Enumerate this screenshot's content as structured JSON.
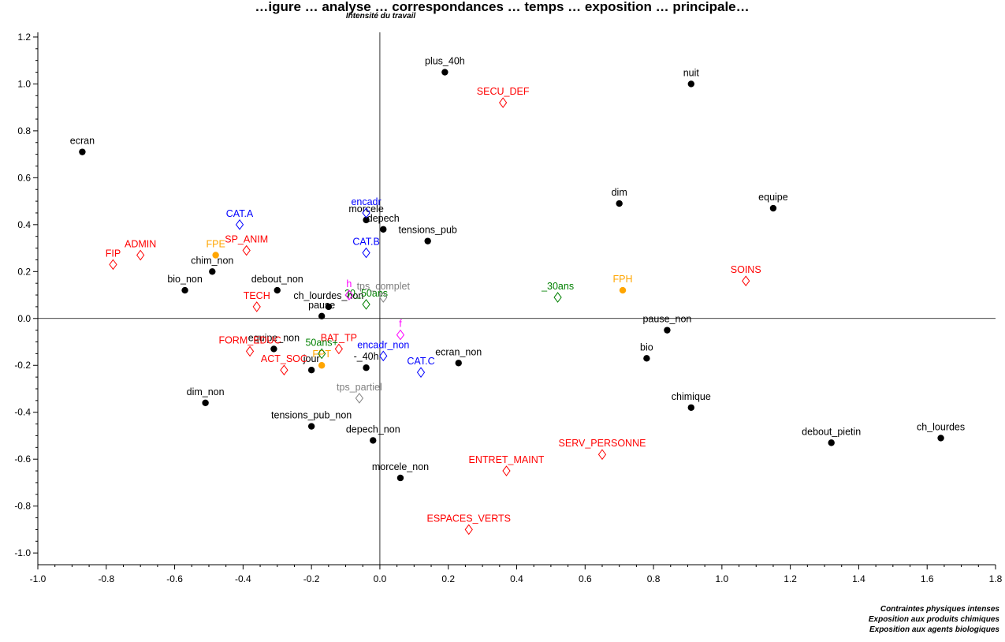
{
  "chart_data": {
    "type": "scatter",
    "title": "…igure … analyse … correspondances … temps … exposition … principale…",
    "ylabel": "Intensité du travail",
    "xlabel_lines": [
      "Contraintes physiques intenses",
      "Exposition aux produits chimiques",
      "Exposition aux agents biologiques"
    ],
    "xlim": [
      -1.0,
      1.8
    ],
    "ylim": [
      -1.05,
      1.22
    ],
    "x_ticks": [
      -1.0,
      -0.8,
      -0.6,
      -0.4,
      -0.2,
      0.0,
      0.2,
      0.4,
      0.6,
      0.8,
      1.0,
      1.2,
      1.4,
      1.6,
      1.8
    ],
    "x_tick_labels": [
      "-1.0",
      "-0.8",
      "-0.6",
      "-0.4",
      "-0.2",
      "0.0",
      "0.2",
      "0.4",
      "0.6",
      "0.8",
      "1.0",
      "1.2",
      "1.4",
      "1.6",
      "1.8"
    ],
    "y_ticks": [
      -1.0,
      -0.8,
      -0.6,
      -0.4,
      -0.2,
      0.0,
      0.2,
      0.4,
      0.6,
      0.8,
      1.0,
      1.2
    ],
    "y_tick_labels": [
      "-1.0",
      "-0.8",
      "-0.6",
      "-0.4",
      "-0.2",
      "0.0",
      "0.2",
      "0.4",
      "0.6",
      "0.8",
      "1.0",
      "1.2"
    ],
    "reference_lines": {
      "x": 0.0,
      "y": 0.0
    },
    "grid": false,
    "colors": {
      "black": "#000000",
      "red": "#ff0000",
      "blue": "#0000ff",
      "orange": "#ffa500",
      "green": "#008000",
      "magenta": "#ff00ff",
      "gray": "#808080"
    },
    "points": [
      {
        "label": "plus_40h",
        "x": 0.19,
        "y": 1.05,
        "marker": "dot",
        "color": "#000000"
      },
      {
        "label": "nuit",
        "x": 0.91,
        "y": 1.0,
        "marker": "dot",
        "color": "#000000"
      },
      {
        "label": "ecran",
        "x": -0.87,
        "y": 0.71,
        "marker": "dot",
        "color": "#000000"
      },
      {
        "label": "dim",
        "x": 0.7,
        "y": 0.49,
        "marker": "dot",
        "color": "#000000"
      },
      {
        "label": "equipe",
        "x": 1.15,
        "y": 0.47,
        "marker": "dot",
        "color": "#000000"
      },
      {
        "label": "depech",
        "x": 0.01,
        "y": 0.38,
        "marker": "dot",
        "color": "#000000"
      },
      {
        "label": "tensions_pub",
        "x": 0.14,
        "y": 0.33,
        "marker": "dot",
        "color": "#000000"
      },
      {
        "label": "morcele",
        "x": -0.04,
        "y": 0.42,
        "marker": "dot",
        "color": "#000000"
      },
      {
        "label": "chim_non",
        "x": -0.49,
        "y": 0.2,
        "marker": "dot",
        "color": "#000000"
      },
      {
        "label": "bio_non",
        "x": -0.57,
        "y": 0.12,
        "marker": "dot",
        "color": "#000000"
      },
      {
        "label": "debout_non",
        "x": -0.3,
        "y": 0.12,
        "marker": "dot",
        "color": "#000000"
      },
      {
        "label": "pause",
        "x": -0.17,
        "y": 0.01,
        "marker": "dot",
        "color": "#000000"
      },
      {
        "label": "ch_lourdes_non",
        "x": -0.15,
        "y": 0.05,
        "marker": "dot",
        "color": "#000000"
      },
      {
        "label": "equipe_non",
        "x": -0.31,
        "y": -0.13,
        "marker": "dot",
        "color": "#000000"
      },
      {
        "label": "jour",
        "x": -0.2,
        "y": -0.22,
        "marker": "dot",
        "color": "#000000"
      },
      {
        "label": "-_40h",
        "x": -0.04,
        "y": -0.21,
        "marker": "dot",
        "color": "#000000"
      },
      {
        "label": "ecran_non",
        "x": 0.23,
        "y": -0.19,
        "marker": "dot",
        "color": "#000000"
      },
      {
        "label": "pause_non",
        "x": 0.84,
        "y": -0.05,
        "marker": "dot",
        "color": "#000000"
      },
      {
        "label": "bio",
        "x": 0.78,
        "y": -0.17,
        "marker": "dot",
        "color": "#000000"
      },
      {
        "label": "chimique",
        "x": 0.91,
        "y": -0.38,
        "marker": "dot",
        "color": "#000000"
      },
      {
        "label": "dim_non",
        "x": -0.51,
        "y": -0.36,
        "marker": "dot",
        "color": "#000000"
      },
      {
        "label": "tensions_pub_non",
        "x": -0.2,
        "y": -0.46,
        "marker": "dot",
        "color": "#000000"
      },
      {
        "label": "depech_non",
        "x": -0.02,
        "y": -0.52,
        "marker": "dot",
        "color": "#000000"
      },
      {
        "label": "morcele_non",
        "x": 0.06,
        "y": -0.68,
        "marker": "dot",
        "color": "#000000"
      },
      {
        "label": "debout_pietin",
        "x": 1.32,
        "y": -0.53,
        "marker": "dot",
        "color": "#000000"
      },
      {
        "label": "ch_lourdes",
        "x": 1.64,
        "y": -0.51,
        "marker": "dot",
        "color": "#000000"
      },
      {
        "label": "SECU_DEF",
        "x": 0.36,
        "y": 0.92,
        "marker": "diamond",
        "color": "#ff0000"
      },
      {
        "label": "ADMIN",
        "x": -0.7,
        "y": 0.27,
        "marker": "diamond",
        "color": "#ff0000"
      },
      {
        "label": "FIP",
        "x": -0.78,
        "y": 0.23,
        "marker": "diamond",
        "color": "#ff0000"
      },
      {
        "label": "SP_ANIM",
        "x": -0.39,
        "y": 0.29,
        "marker": "diamond",
        "color": "#ff0000"
      },
      {
        "label": "TECH",
        "x": -0.36,
        "y": 0.05,
        "marker": "diamond",
        "color": "#ff0000"
      },
      {
        "label": "SOINS",
        "x": 1.07,
        "y": 0.16,
        "marker": "diamond",
        "color": "#ff0000"
      },
      {
        "label": "BAT_TP",
        "x": -0.12,
        "y": -0.13,
        "marker": "diamond",
        "color": "#ff0000"
      },
      {
        "label": "FORM_EDUC",
        "x": -0.38,
        "y": -0.14,
        "marker": "diamond",
        "color": "#ff0000"
      },
      {
        "label": "ACT_SOC",
        "x": -0.28,
        "y": -0.22,
        "marker": "diamond",
        "color": "#ff0000"
      },
      {
        "label": "SERV_PERSONNE",
        "x": 0.65,
        "y": -0.58,
        "marker": "diamond",
        "color": "#ff0000"
      },
      {
        "label": "ENTRET_MAINT",
        "x": 0.37,
        "y": -0.65,
        "marker": "diamond",
        "color": "#ff0000"
      },
      {
        "label": "ESPACES_VERTS",
        "x": 0.26,
        "y": -0.9,
        "marker": "diamond",
        "color": "#ff0000"
      },
      {
        "label": "CAT.A",
        "x": -0.41,
        "y": 0.4,
        "marker": "diamond",
        "color": "#0000ff"
      },
      {
        "label": "encadr",
        "x": -0.04,
        "y": 0.45,
        "marker": "diamond",
        "color": "#0000ff"
      },
      {
        "label": "CAT.B",
        "x": -0.04,
        "y": 0.28,
        "marker": "diamond",
        "color": "#0000ff"
      },
      {
        "label": "encadr_non",
        "x": 0.01,
        "y": -0.16,
        "marker": "diamond",
        "color": "#0000ff"
      },
      {
        "label": "CAT.C",
        "x": 0.12,
        "y": -0.23,
        "marker": "diamond",
        "color": "#0000ff"
      },
      {
        "label": "FPE",
        "x": -0.48,
        "y": 0.27,
        "marker": "dot",
        "color": "#ffa500"
      },
      {
        "label": "FPH",
        "x": 0.71,
        "y": 0.12,
        "marker": "dot",
        "color": "#ffa500"
      },
      {
        "label": "FPT",
        "x": -0.17,
        "y": -0.2,
        "marker": "dot",
        "color": "#ffa500"
      },
      {
        "label": "_30ans",
        "x": 0.52,
        "y": 0.09,
        "marker": "diamond",
        "color": "#008000"
      },
      {
        "label": "30_50ans",
        "x": -0.04,
        "y": 0.06,
        "marker": "diamond",
        "color": "#008000"
      },
      {
        "label": "50ans+",
        "x": -0.17,
        "y": -0.15,
        "marker": "diamond",
        "color": "#008000"
      },
      {
        "label": "h",
        "x": -0.09,
        "y": 0.1,
        "marker": "diamond",
        "color": "#ff00ff"
      },
      {
        "label": "f",
        "x": 0.06,
        "y": -0.07,
        "marker": "diamond",
        "color": "#ff00ff"
      },
      {
        "label": "tps_complet",
        "x": 0.01,
        "y": 0.09,
        "marker": "diamond",
        "color": "#808080"
      },
      {
        "label": "tps_partiel",
        "x": -0.06,
        "y": -0.34,
        "marker": "diamond",
        "color": "#808080"
      }
    ]
  }
}
